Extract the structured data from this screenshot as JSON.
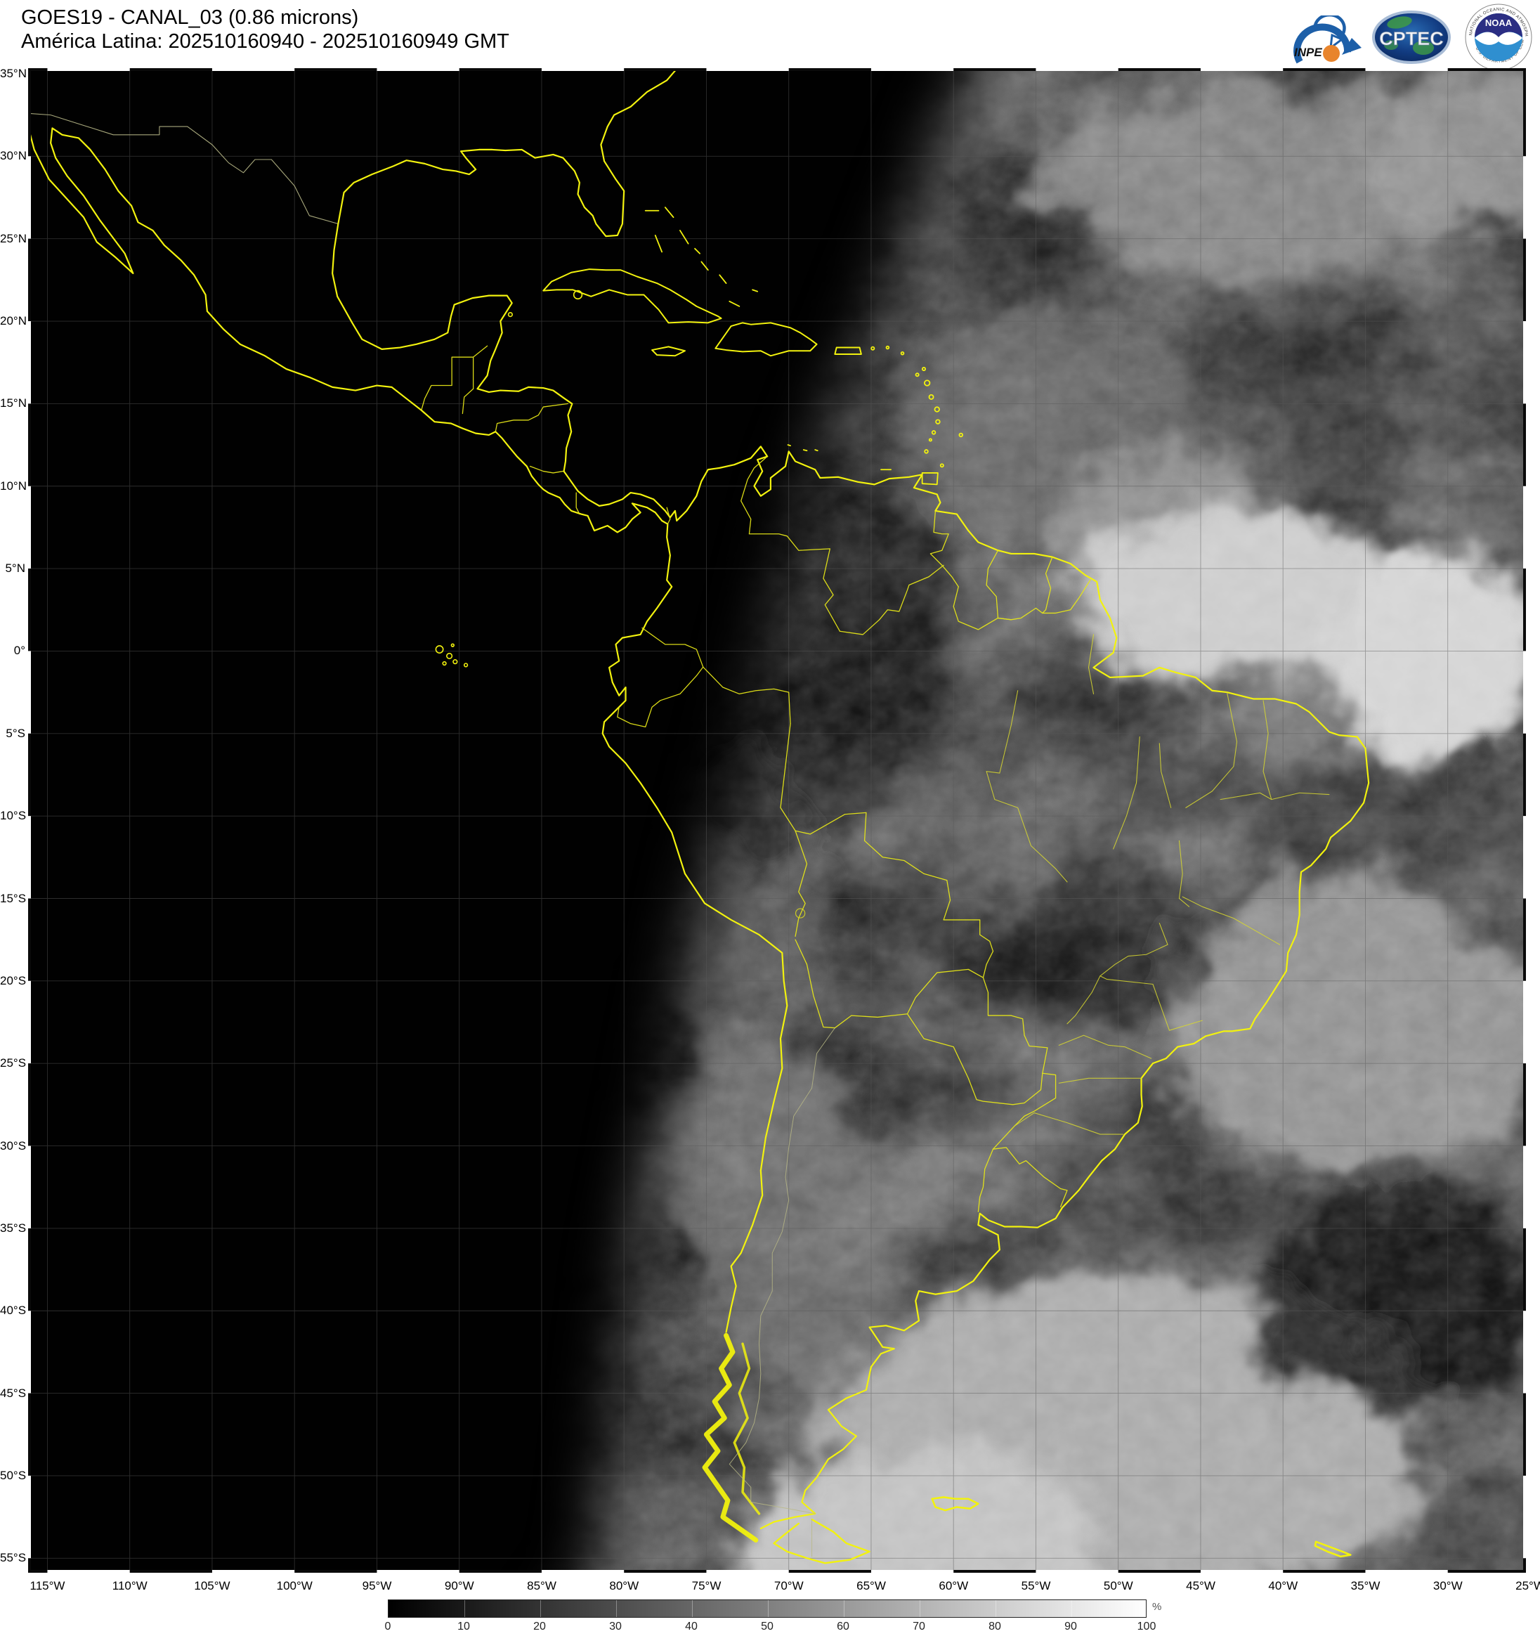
{
  "header": {
    "title_line1": "GOES19 - CANAL_03 (0.86 microns)",
    "title_line2": "América Latina: 202510160940 - 202510160949 GMT"
  },
  "logos": {
    "inpe_label": "INPE",
    "cptec_label": "CPTEC",
    "noaa_label": "NOAA",
    "noaa_ring_top": "NATIONAL OCEANIC AND ATMOSPHERIC ADMINISTRATION",
    "noaa_ring_bottom": "U.S. DEPARTMENT OF COMMERCE"
  },
  "map": {
    "lat_labels": [
      "35°N",
      "30°N",
      "25°N",
      "20°N",
      "15°N",
      "10°N",
      "5°N",
      "0°",
      "5°S",
      "10°S",
      "15°S",
      "20°S",
      "25°S",
      "30°S",
      "35°S",
      "40°S",
      "45°S",
      "50°S",
      "55°S"
    ],
    "lon_labels": [
      "115°W",
      "110°W",
      "105°W",
      "100°W",
      "95°W",
      "90°W",
      "85°W",
      "80°W",
      "75°W",
      "70°W",
      "65°W",
      "60°W",
      "55°W",
      "50°W",
      "45°W",
      "40°W",
      "35°W",
      "30°W",
      "25°W"
    ],
    "coastline_color": "#f2f20e",
    "border_color": "#e6e618",
    "night_color": "#010101"
  },
  "colorbar": {
    "ticks": [
      "0",
      "10",
      "20",
      "30",
      "40",
      "50",
      "60",
      "70",
      "80",
      "90",
      "100"
    ],
    "unit": "%"
  }
}
